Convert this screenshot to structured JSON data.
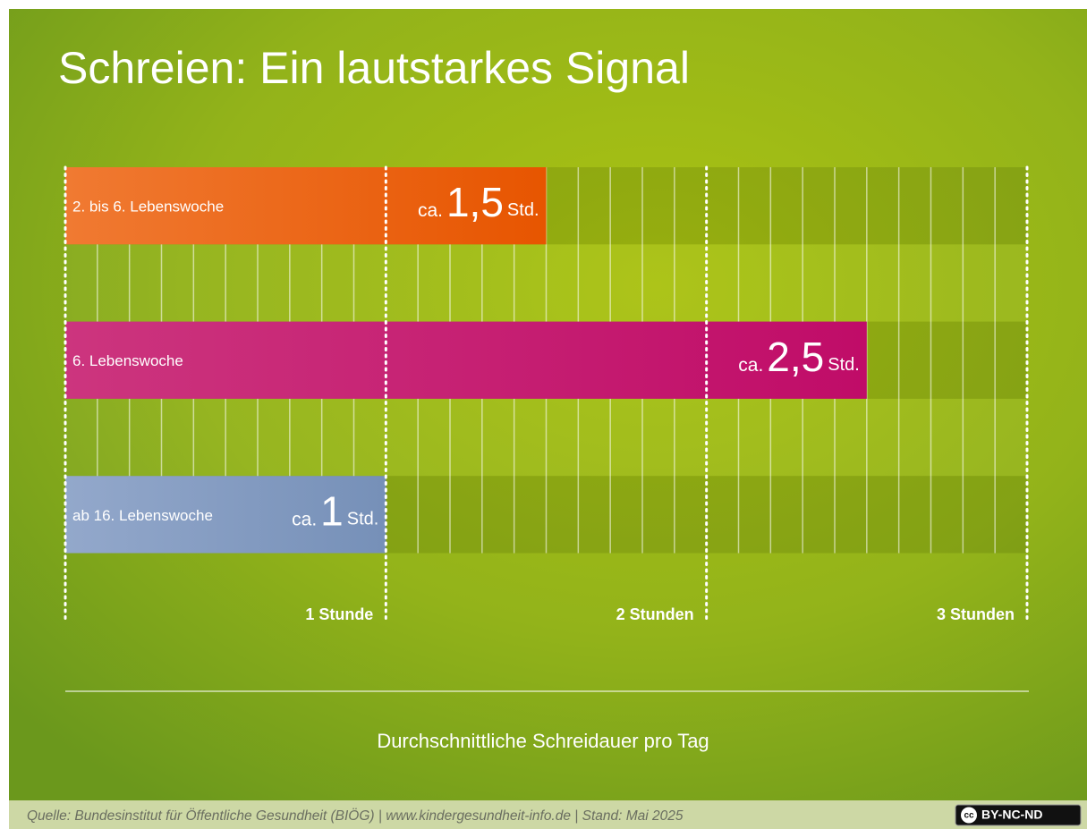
{
  "chart_data": {
    "type": "bar",
    "orientation": "horizontal",
    "title": "Schreien: Ein lautstarkes Signal",
    "categories": [
      "2. bis 6. Lebenswoche",
      "6. Lebenswoche",
      "ab 16. Lebenswoche"
    ],
    "values": [
      1.5,
      2.5,
      1
    ],
    "value_labels": [
      "1,5",
      "2,5",
      "1"
    ],
    "value_prefix": "ca.",
    "value_suffix": "Std.",
    "colors": [
      [
        "#f07a32",
        "#e75500"
      ],
      [
        "#cc357e",
        "#c00c68"
      ],
      [
        "#93a8cb",
        "#7690b8"
      ]
    ],
    "xlim": [
      0,
      3
    ],
    "xticks": [
      {
        "value": 1,
        "label": "1 Stunde"
      },
      {
        "value": 2,
        "label": "2 Stunden"
      },
      {
        "value": 3,
        "label": "3 Stunden"
      }
    ],
    "xlabel": "Durchschnittliche Schreidauer pro Tag",
    "grid": true,
    "source": "Quelle: Bundesinstitut für Öffentliche Gesundheit (BIÖG) | www.kindergesundheit-info.de | Stand: Mai 2025",
    "license": {
      "icon": "cc",
      "text": "BY-NC-ND"
    }
  }
}
